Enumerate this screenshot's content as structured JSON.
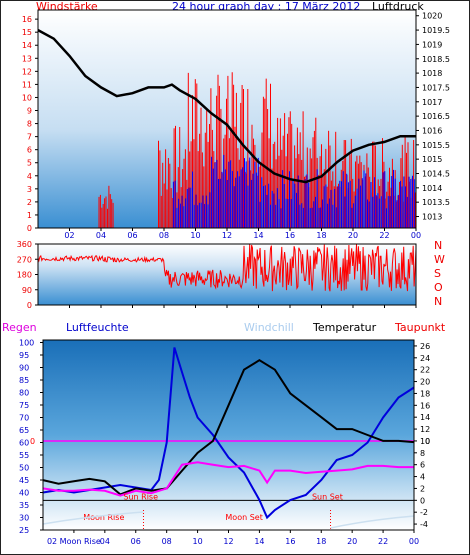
{
  "header": {
    "left_label": "Windstärke",
    "title": "24 hour graph day : 17 März 2012",
    "right_label": "Luftdruck"
  },
  "legend2": {
    "regen": "Regen",
    "luftfeuchte": "Luftfeuchte",
    "windchill": "Windchill",
    "temperatur": "Temperatur",
    "taupunkt": "Taupunkt"
  },
  "colors": {
    "wind": "#ff0000",
    "gust": "#0000ff",
    "pressure": "#000000",
    "humidity": "#0000dd",
    "temperature": "#000000",
    "dewpoint": "#ff00ff",
    "label_red": "#ee0000",
    "label_blue": "#0000cc",
    "windchill": "#aaccee"
  },
  "chart_data": [
    {
      "type": "line",
      "name": "wind-pressure",
      "title": "24 hour graph day : 17 März 2012",
      "x_ticks": [
        "02",
        "04",
        "06",
        "08",
        "10",
        "12",
        "14",
        "16",
        "18",
        "20",
        "22",
        "00"
      ],
      "y_left_label": "Windstärke",
      "y_left_ticks": [
        0,
        1,
        2,
        3,
        4,
        5,
        6,
        7,
        8,
        9,
        10,
        11,
        12,
        13,
        14,
        15,
        16
      ],
      "y_right_label": "Luftdruck",
      "y_right_ticks": [
        1013,
        1013.5,
        1014,
        1014.5,
        1015,
        1015.5,
        1016,
        1016.5,
        1017,
        1017.5,
        1018,
        1018.5,
        1019,
        1019.5,
        1020
      ],
      "ylim_left": [
        0,
        16.7
      ],
      "ylim_right": [
        1012.6,
        1020.2
      ],
      "pressure": {
        "x": [
          0,
          1,
          2,
          3,
          4,
          5,
          6,
          7,
          8,
          8.5,
          9,
          10,
          11,
          12,
          13,
          14,
          15,
          16,
          17,
          18,
          19,
          20,
          21,
          22,
          23,
          24
        ],
        "y": [
          1019.5,
          1019.2,
          1018.6,
          1017.9,
          1017.5,
          1017.2,
          1017.3,
          1017.5,
          1017.5,
          1017.6,
          1017.4,
          1017.1,
          1016.6,
          1016.2,
          1015.5,
          1014.9,
          1014.5,
          1014.3,
          1014.2,
          1014.4,
          1014.9,
          1015.3,
          1015.5,
          1015.6,
          1015.8,
          1015.8
        ]
      }
    },
    {
      "type": "scatter",
      "name": "wind-direction",
      "y_left_ticks": [
        0,
        90,
        180,
        270,
        360
      ],
      "y_right_ticks": [
        "N",
        "W",
        "S",
        "O",
        "N"
      ],
      "ylim": [
        0,
        360
      ],
      "x_ticks": [
        "02",
        "04",
        "06",
        "08",
        "10",
        "12",
        "14",
        "16",
        "18",
        "20",
        "22",
        "00"
      ]
    },
    {
      "type": "line",
      "name": "humidity-temperature",
      "x_ticks": [
        "02",
        "04",
        "06",
        "08",
        "10",
        "12",
        "14",
        "16",
        "18",
        "20",
        "22",
        "00"
      ],
      "y_left_ticks": [
        25,
        30,
        35,
        40,
        45,
        50,
        55,
        60,
        65,
        70,
        75,
        80,
        85,
        90,
        95,
        100
      ],
      "y_right_ticks": [
        -4,
        -2,
        0,
        2,
        4,
        6,
        8,
        10,
        12,
        14,
        16,
        18,
        20,
        22,
        24,
        26
      ],
      "y_mid_ticks": [
        0,
        0
      ],
      "ylim_left": [
        25,
        101
      ],
      "ylim_right": [
        -5,
        27
      ],
      "annotations": [
        "Sun Rise",
        "Sun Set",
        "Moon Rise",
        "Moon Set"
      ],
      "moon_rise_label": "02 Moon Rise",
      "series": [
        {
          "name": "Luftfeuchte",
          "x": [
            0,
            1,
            2,
            3,
            4,
            5,
            6,
            7,
            7.5,
            8,
            8.5,
            9,
            9.5,
            10,
            11,
            12,
            13,
            14,
            14.5,
            15,
            16,
            17,
            18,
            19,
            20,
            21,
            22,
            23,
            24
          ],
          "y": [
            40,
            41,
            40,
            41,
            42,
            43,
            42,
            41,
            45,
            60,
            98,
            88,
            78,
            70,
            63,
            54,
            48,
            37,
            30,
            33,
            37,
            39,
            45,
            53,
            55,
            60,
            70,
            78,
            82
          ]
        },
        {
          "name": "Temperatur",
          "x": [
            0,
            1,
            2,
            3,
            4,
            5,
            6,
            7,
            8,
            9,
            10,
            11,
            12,
            13,
            14,
            15,
            16,
            17,
            18,
            19,
            20,
            21,
            22,
            23,
            24
          ],
          "y": [
            3.4,
            2.8,
            3.2,
            3.6,
            3.2,
            1.0,
            2.0,
            1.6,
            2.0,
            5.0,
            8.0,
            10.0,
            16.0,
            22.0,
            23.6,
            22.0,
            18.0,
            16.0,
            14.0,
            12.0,
            12.0,
            11.0,
            10.0,
            10.0,
            9.8
          ]
        },
        {
          "name": "Taupunkt",
          "x": [
            0,
            1,
            2,
            3,
            4,
            5,
            6,
            7,
            8,
            9,
            10,
            11,
            12,
            13,
            14,
            14.5,
            15,
            16,
            17,
            18,
            19,
            20,
            21,
            22,
            23,
            24
          ],
          "y": [
            2.0,
            1.6,
            1.6,
            1.8,
            1.6,
            0.8,
            1.6,
            1.2,
            2.0,
            6.0,
            6.4,
            6.0,
            5.6,
            5.8,
            5.0,
            3.0,
            5.0,
            5.0,
            4.6,
            4.8,
            5.0,
            5.2,
            5.8,
            5.8,
            5.6,
            5.6
          ]
        }
      ]
    }
  ]
}
